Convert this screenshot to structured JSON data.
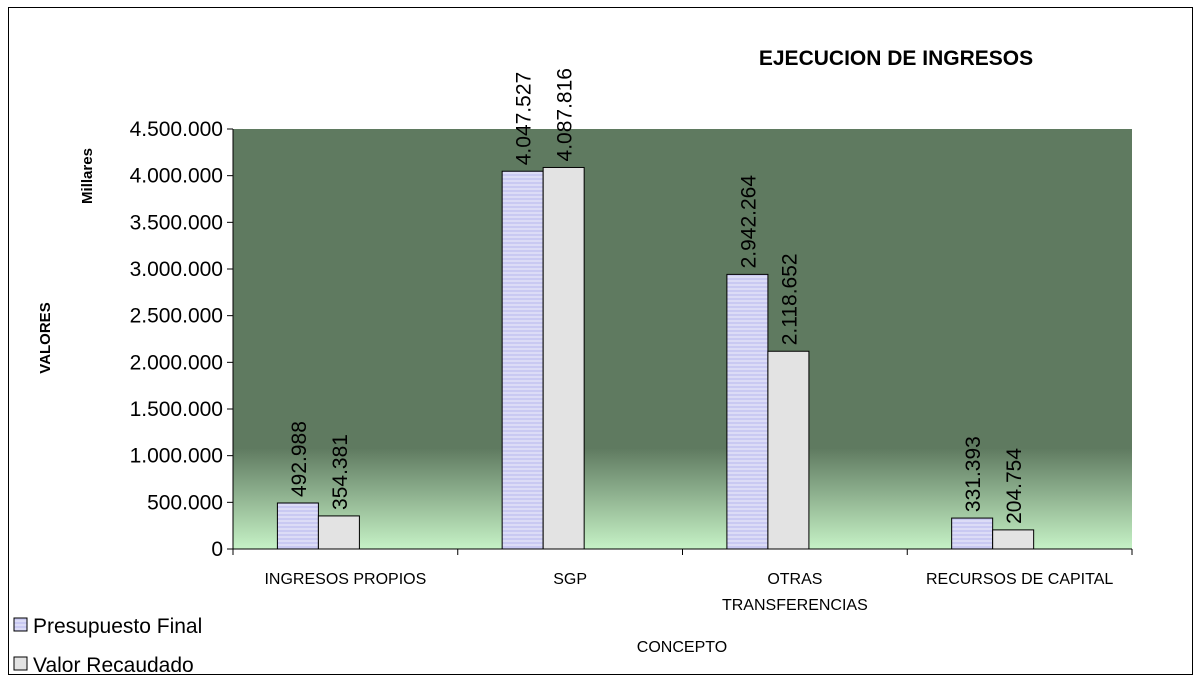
{
  "chart_data": {
    "type": "bar",
    "title": "EJECUCION DE INGRESOS",
    "xlabel": "CONCEPTO",
    "ylabel": "VALORES",
    "unit_label": "Millares",
    "categories": [
      "INGRESOS PROPIOS",
      "SGP",
      "OTRAS TRANSFERENCIAS",
      "RECURSOS DE CAPITAL"
    ],
    "category_lines": [
      [
        "INGRESOS PROPIOS"
      ],
      [
        "SGP"
      ],
      [
        "OTRAS",
        "TRANSFERENCIAS"
      ],
      [
        "RECURSOS DE CAPITAL"
      ]
    ],
    "series": [
      {
        "name": "Presupuesto Final",
        "values": [
          492988,
          4047527,
          2942264,
          331393
        ],
        "labels": [
          "492.988",
          "4.047.527",
          "2.942.264",
          "331.393"
        ],
        "color": "#c9c9f2"
      },
      {
        "name": "Valor Recaudado",
        "values": [
          354381,
          4087816,
          2118652,
          204754
        ],
        "labels": [
          "354.381",
          "4.087.816",
          "2.118.652",
          "204.754"
        ],
        "color": "#e3e3e3"
      }
    ],
    "ylim": [
      0,
      4500000
    ],
    "yticks": [
      0,
      500000,
      1000000,
      1500000,
      2000000,
      2500000,
      3000000,
      3500000,
      4000000,
      4500000
    ],
    "ytick_labels": [
      "0",
      "500.000",
      "1.000.000",
      "1.500.000",
      "2.000.000",
      "2.500.000",
      "3.000.000",
      "3.500.000",
      "4.000.000",
      "4.500.000"
    ],
    "legend_position": "bottom-left",
    "grid": false
  },
  "colors": {
    "plot_top": "#5f7a60",
    "plot_bottom": "#c6f2c6"
  }
}
